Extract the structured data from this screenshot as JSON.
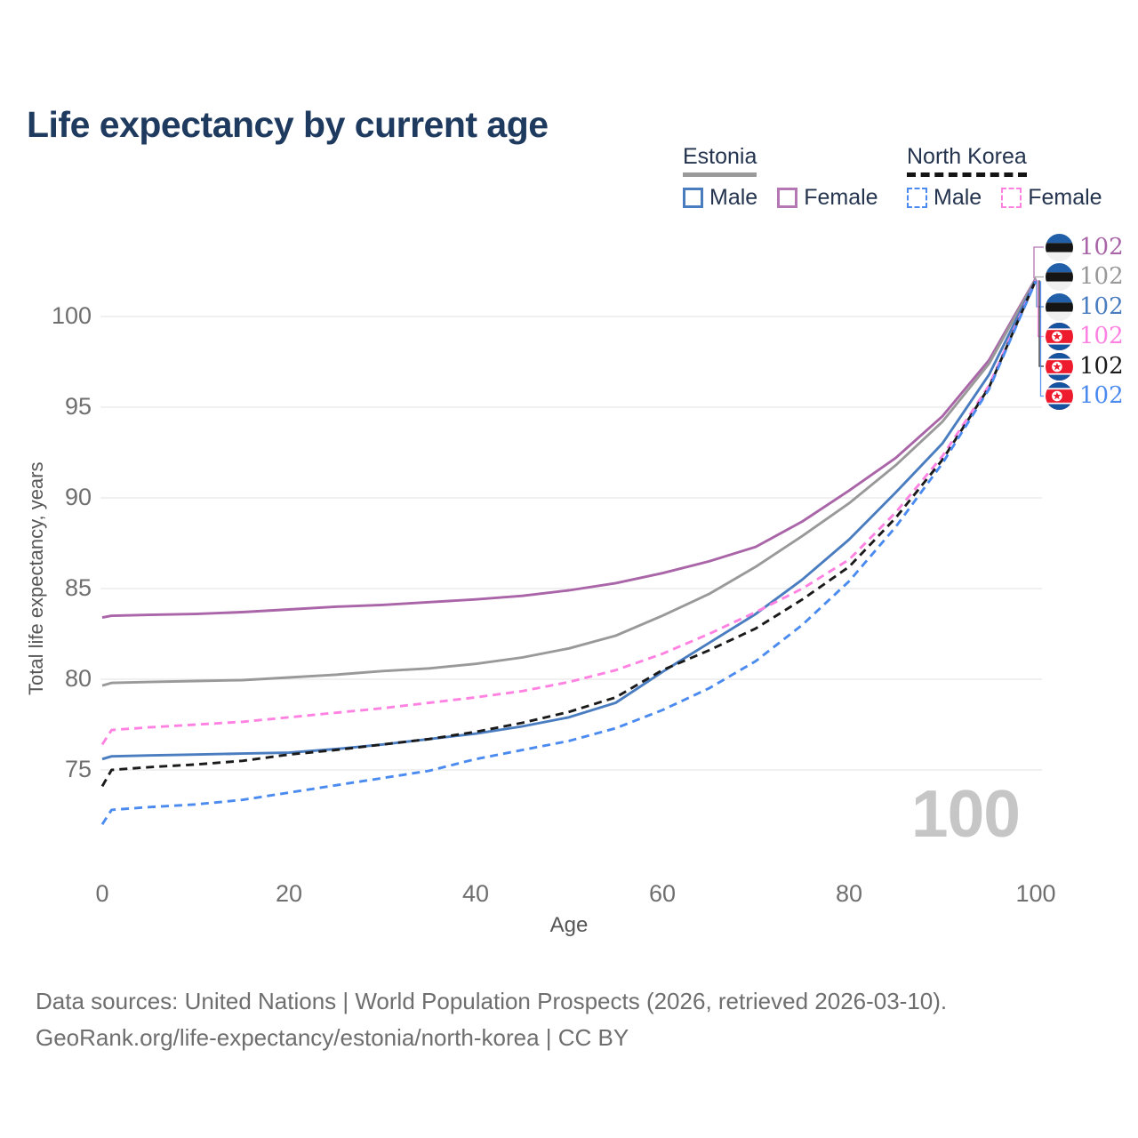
{
  "title": "Life expectancy by current age",
  "legend": {
    "groups": [
      {
        "country": "Estonia",
        "line_style": "solid",
        "underline_color": "#9a9a9a",
        "items": [
          {
            "label": "Male",
            "color": "#4a7cc0"
          },
          {
            "label": "Female",
            "color": "#b577b3"
          }
        ]
      },
      {
        "country": "North Korea",
        "line_style": "dashed",
        "underline_color": "#141414",
        "items": [
          {
            "label": "Male",
            "color": "#4b8bf0"
          },
          {
            "label": "Female",
            "color": "#ff82e2"
          }
        ]
      }
    ]
  },
  "chart_data": {
    "type": "line",
    "title": "Life expectancy by current age",
    "xlabel": "Age",
    "ylabel": "Total life expectancy, years",
    "x_ticks": [
      0,
      20,
      40,
      60,
      80,
      100
    ],
    "y_ticks": [
      75,
      80,
      85,
      90,
      95,
      100
    ],
    "xlim": [
      0,
      100
    ],
    "ylim": [
      71.5,
      102.5
    ],
    "grid": "horizontal",
    "legend_position": "top-right",
    "x": [
      0,
      1,
      5,
      10,
      15,
      20,
      25,
      30,
      35,
      40,
      45,
      50,
      55,
      60,
      65,
      70,
      75,
      80,
      85,
      90,
      95,
      100
    ],
    "series": [
      {
        "name": "Estonia Female",
        "country": "estonia",
        "sex": "female",
        "color": "#a965a8",
        "dash": "solid",
        "end_label": "102",
        "values": [
          83.4,
          83.5,
          83.55,
          83.6,
          83.7,
          83.85,
          84.0,
          84.1,
          84.25,
          84.4,
          84.6,
          84.9,
          85.3,
          85.85,
          86.5,
          87.3,
          88.7,
          90.4,
          92.2,
          94.5,
          97.6,
          102.1
        ]
      },
      {
        "name": "Estonia Both sexes",
        "country": "estonia",
        "sex": "both",
        "color": "#999999",
        "dash": "solid",
        "end_label": "102",
        "values": [
          79.65,
          79.8,
          79.85,
          79.9,
          79.95,
          80.1,
          80.25,
          80.45,
          80.6,
          80.85,
          81.2,
          81.7,
          82.4,
          83.5,
          84.7,
          86.2,
          87.9,
          89.7,
          91.8,
          94.2,
          97.4,
          102.05
        ]
      },
      {
        "name": "Estonia Male",
        "country": "estonia",
        "sex": "male",
        "color": "#4a7cc0",
        "dash": "solid",
        "end_label": "102",
        "values": [
          75.6,
          75.75,
          75.8,
          75.85,
          75.9,
          75.95,
          76.15,
          76.4,
          76.7,
          77.0,
          77.4,
          77.9,
          78.7,
          80.4,
          82.0,
          83.6,
          85.5,
          87.7,
          90.3,
          93.0,
          96.8,
          102.0
        ]
      },
      {
        "name": "North Korea Female",
        "country": "north-korea",
        "sex": "female",
        "color": "#ff82e2",
        "dash": "dashed",
        "end_label": "102",
        "values": [
          76.4,
          77.2,
          77.35,
          77.5,
          77.65,
          77.9,
          78.15,
          78.4,
          78.7,
          79.0,
          79.35,
          79.85,
          80.5,
          81.4,
          82.5,
          83.7,
          85.0,
          86.6,
          89.2,
          92.3,
          96.2,
          102.0
        ]
      },
      {
        "name": "North Korea Both sexes",
        "country": "north-korea",
        "sex": "both",
        "color": "#1a1a1a",
        "dash": "dashed",
        "end_label": "102",
        "values": [
          74.1,
          75.0,
          75.15,
          75.3,
          75.5,
          75.85,
          76.1,
          76.4,
          76.7,
          77.1,
          77.6,
          78.2,
          79.0,
          80.5,
          81.6,
          82.8,
          84.4,
          86.2,
          88.9,
          92.1,
          96.1,
          102.0
        ]
      },
      {
        "name": "North Korea Male",
        "country": "north-korea",
        "sex": "male",
        "color": "#4b8bf0",
        "dash": "dashed",
        "end_label": "102",
        "values": [
          72.0,
          72.8,
          72.95,
          73.1,
          73.35,
          73.75,
          74.15,
          74.55,
          74.95,
          75.6,
          76.1,
          76.6,
          77.3,
          78.3,
          79.5,
          81.0,
          83.0,
          85.4,
          88.4,
          91.9,
          96.0,
          101.95
        ]
      }
    ]
  },
  "watermark_age": "100",
  "colors": {
    "title": "#1e3a5f",
    "axis_text": "#6f6f6f",
    "grid": "#e7e7e7",
    "watermark": "#c6c6c6",
    "estonia_flag": [
      "#2160a8",
      "#151515",
      "#f0f0f0"
    ],
    "north_korea_flag": [
      "#1353a0",
      "#ffffff",
      "#ed1b2d"
    ]
  },
  "footer": {
    "line1": "Data sources: United Nations | World Population Prospects (2026, retrieved 2026-03-10).",
    "line2": "GeoRank.org/life-expectancy/estonia/north-korea | CC BY"
  }
}
